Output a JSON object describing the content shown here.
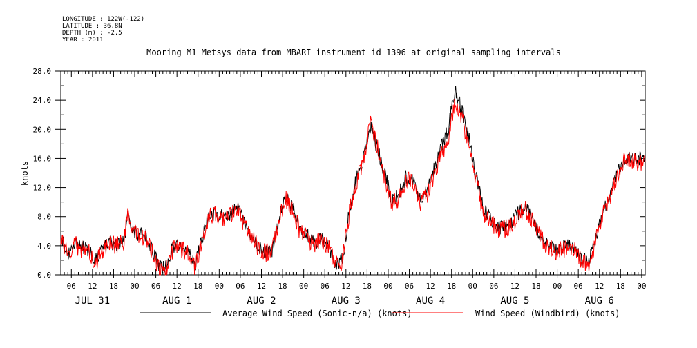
{
  "header": {
    "longitude": "LONGITUDE : 122W(-122)",
    "latitude": "LATITUDE : 36.8N",
    "depth": "DEPTH (m) : -2.5",
    "year": "YEAR : 2011"
  },
  "chart_data": {
    "type": "line",
    "title": "Mooring M1 Metsys data from MBARI instrument id 1396 at original sampling intervals",
    "xlabel": "",
    "ylabel": "knots",
    "ylim": [
      0,
      28
    ],
    "y_ticks": [
      "0.0",
      "4.0",
      "8.0",
      "12.0",
      "16.0",
      "20.0",
      "24.0",
      "28.0"
    ],
    "x_range_hours": [
      3,
      169
    ],
    "x_hour_ticks": [
      {
        "hour": 6,
        "label": "06"
      },
      {
        "hour": 12,
        "label": "12"
      },
      {
        "hour": 18,
        "label": "18"
      },
      {
        "hour": 24,
        "label": "00"
      },
      {
        "hour": 30,
        "label": "06"
      },
      {
        "hour": 36,
        "label": "12"
      },
      {
        "hour": 42,
        "label": "18"
      },
      {
        "hour": 48,
        "label": "00"
      },
      {
        "hour": 54,
        "label": "06"
      },
      {
        "hour": 60,
        "label": "12"
      },
      {
        "hour": 66,
        "label": "18"
      },
      {
        "hour": 72,
        "label": "00"
      },
      {
        "hour": 78,
        "label": "06"
      },
      {
        "hour": 84,
        "label": "12"
      },
      {
        "hour": 90,
        "label": "18"
      },
      {
        "hour": 96,
        "label": "00"
      },
      {
        "hour": 102,
        "label": "06"
      },
      {
        "hour": 108,
        "label": "12"
      },
      {
        "hour": 114,
        "label": "18"
      },
      {
        "hour": 120,
        "label": "00"
      },
      {
        "hour": 126,
        "label": "06"
      },
      {
        "hour": 132,
        "label": "12"
      },
      {
        "hour": 138,
        "label": "18"
      },
      {
        "hour": 144,
        "label": "00"
      },
      {
        "hour": 150,
        "label": "06"
      },
      {
        "hour": 156,
        "label": "12"
      },
      {
        "hour": 162,
        "label": "18"
      },
      {
        "hour": 168,
        "label": "00"
      }
    ],
    "x_day_labels": [
      {
        "hour": 12,
        "label": "JUL 31"
      },
      {
        "hour": 36,
        "label": "AUG  1"
      },
      {
        "hour": 60,
        "label": "AUG  2"
      },
      {
        "hour": 84,
        "label": "AUG  3"
      },
      {
        "hour": 108,
        "label": "AUG  4"
      },
      {
        "hour": 132,
        "label": "AUG  5"
      },
      {
        "hour": 156,
        "label": "AUG  6"
      }
    ],
    "grid": false,
    "legend": "bottom",
    "series": [
      {
        "name": "Average Wind Speed (Sonic-n/a) (knots)",
        "color": "#000000",
        "x": [
          3,
          5,
          7,
          9,
          11,
          13,
          15,
          17,
          19,
          21,
          22,
          23,
          25,
          27,
          29,
          31,
          33,
          35,
          37,
          39,
          41,
          43,
          45,
          47,
          49,
          51,
          53,
          55,
          57,
          59,
          61,
          63,
          65,
          67,
          69,
          71,
          73,
          75,
          77,
          79,
          81,
          83,
          85,
          87,
          89,
          91,
          93,
          95,
          97,
          99,
          101,
          103,
          105,
          107,
          109,
          111,
          113,
          115,
          117,
          119,
          121,
          123,
          125,
          127,
          129,
          131,
          133,
          135,
          137,
          139,
          141,
          143,
          145,
          147,
          149,
          151,
          153,
          155,
          157,
          159,
          161,
          163,
          165,
          167,
          169
        ],
        "values": [
          5.3,
          3.0,
          4.5,
          3.8,
          3.2,
          2.0,
          3.6,
          4.5,
          4.2,
          4.8,
          8.5,
          6.2,
          5.5,
          5.6,
          3.2,
          1.2,
          1.0,
          4.0,
          3.6,
          3.4,
          1.0,
          4.8,
          8.0,
          8.6,
          8.0,
          8.2,
          9.4,
          7.2,
          5.5,
          4.0,
          3.1,
          3.4,
          8.0,
          10.6,
          9.2,
          6.0,
          5.5,
          4.2,
          5.0,
          4.0,
          1.4,
          2.0,
          8.8,
          13.5,
          16.0,
          20.5,
          17.2,
          14.0,
          10.3,
          11.0,
          13.5,
          13.0,
          10.4,
          11.5,
          14.5,
          17.5,
          20.0,
          25.5,
          22.5,
          18.5,
          13.5,
          9.0,
          8.0,
          6.5,
          6.5,
          7.3,
          8.5,
          9.5,
          7.5,
          5.5,
          4.5,
          3.5,
          3.6,
          4.0,
          3.5,
          2.2,
          2.0,
          5.0,
          8.5,
          11.0,
          14.0,
          16.0,
          16.0,
          16.0,
          16.0
        ]
      },
      {
        "name": "Wind Speed (Windbird) (knots)",
        "color": "#ff0000",
        "x": [
          3,
          5,
          7,
          9,
          11,
          13,
          15,
          17,
          19,
          21,
          22,
          23,
          25,
          27,
          29,
          31,
          33,
          35,
          37,
          39,
          41,
          43,
          45,
          47,
          49,
          51,
          53,
          55,
          57,
          59,
          61,
          63,
          65,
          67,
          69,
          71,
          73,
          75,
          77,
          79,
          81,
          83,
          85,
          87,
          89,
          91,
          93,
          95,
          97,
          99,
          101,
          103,
          105,
          107,
          109,
          111,
          113,
          115,
          117,
          119,
          121,
          123,
          125,
          127,
          129,
          131,
          133,
          135,
          137,
          139,
          141,
          143,
          145,
          147,
          149,
          151,
          153,
          155,
          157,
          159,
          161,
          163,
          165,
          167,
          169
        ],
        "values": [
          5.0,
          2.8,
          4.2,
          3.5,
          3.0,
          1.8,
          3.4,
          4.2,
          4.0,
          4.5,
          8.2,
          6.0,
          5.2,
          5.3,
          3.0,
          1.0,
          0.8,
          3.8,
          3.4,
          3.2,
          0.8,
          4.5,
          7.8,
          8.4,
          7.8,
          8.0,
          9.2,
          7.0,
          5.2,
          3.8,
          2.9,
          3.2,
          7.8,
          10.4,
          9.0,
          5.8,
          5.2,
          4.0,
          4.8,
          3.8,
          1.2,
          1.8,
          8.5,
          13.0,
          15.5,
          21.0,
          17.5,
          13.5,
          10.0,
          10.5,
          13.0,
          12.8,
          10.0,
          11.0,
          13.5,
          16.5,
          18.5,
          24.0,
          21.5,
          17.5,
          13.0,
          8.5,
          7.6,
          6.2,
          6.2,
          7.0,
          8.2,
          9.2,
          7.2,
          5.2,
          4.2,
          3.2,
          3.4,
          3.8,
          3.2,
          2.0,
          1.6,
          4.8,
          8.2,
          10.6,
          13.5,
          15.5,
          15.5,
          15.5,
          15.5
        ]
      }
    ]
  }
}
